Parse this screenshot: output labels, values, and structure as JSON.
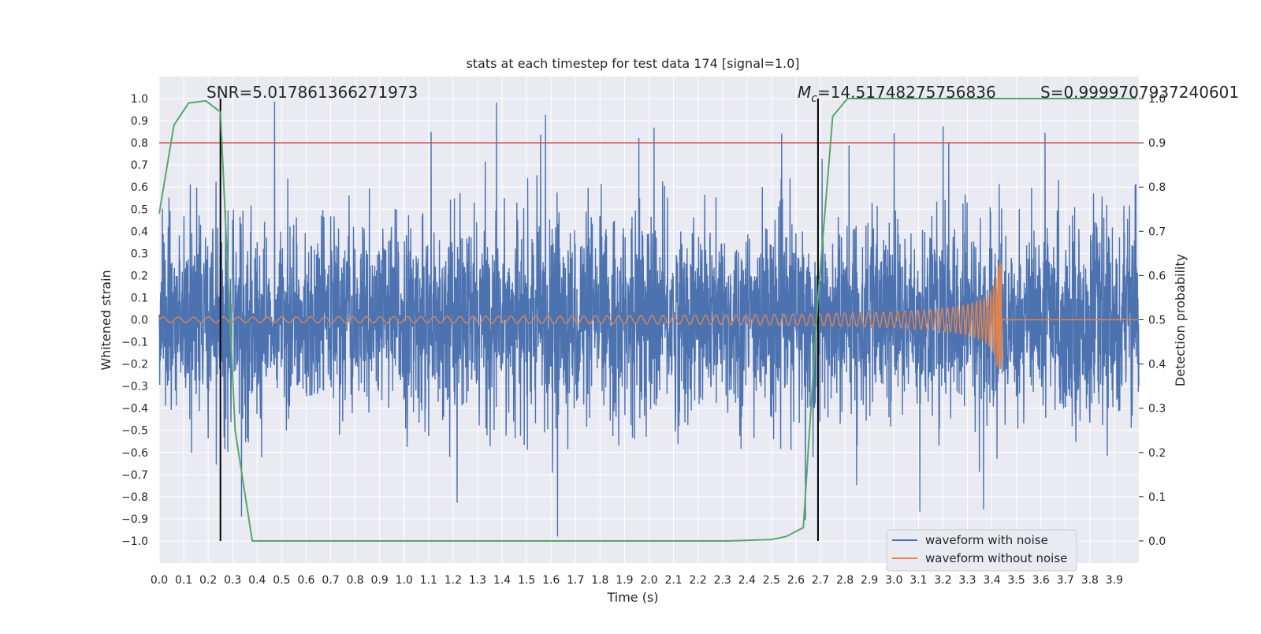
{
  "chart_data": {
    "type": "line",
    "title": "stats at each timestep for test data 174 [signal=1.0]",
    "xlabel": "Time (s)",
    "ylabel": "Whitened strain",
    "y2label": "Detection probability",
    "xlim": [
      0.0,
      4.0
    ],
    "ylim": [
      -1.1,
      1.1
    ],
    "y2lim": [
      -0.05,
      1.05
    ],
    "x_ticks": [
      "0.0",
      "0.1",
      "0.2",
      "0.3",
      "0.4",
      "0.5",
      "0.6",
      "0.7",
      "0.8",
      "0.9",
      "1.0",
      "1.1",
      "1.2",
      "1.3",
      "1.4",
      "1.5",
      "1.6",
      "1.7",
      "1.8",
      "1.9",
      "2.0",
      "2.1",
      "2.2",
      "2.3",
      "2.4",
      "2.5",
      "2.6",
      "2.7",
      "2.8",
      "2.9",
      "3.0",
      "3.1",
      "3.2",
      "3.3",
      "3.4",
      "3.5",
      "3.6",
      "3.7",
      "3.8",
      "3.9"
    ],
    "y_ticks": [
      "1.0",
      "0.9",
      "0.8",
      "0.7",
      "0.6",
      "0.5",
      "0.4",
      "0.3",
      "0.2",
      "0.1",
      "0.0",
      "−0.1",
      "−0.2",
      "−0.3",
      "−0.4",
      "−0.5",
      "−0.6",
      "−0.7",
      "−0.8",
      "−0.9",
      "−1.0"
    ],
    "y2_ticks": [
      "1.0",
      "0.9",
      "0.8",
      "0.7",
      "0.6",
      "0.5",
      "0.4",
      "0.3",
      "0.2",
      "0.1",
      "0.0"
    ],
    "grid": true,
    "legend_position": "bottom-right",
    "annotations": {
      "snr": "SNR=5.017861366271973",
      "mc_symbol": "M",
      "mc_sub": "c",
      "mc_value": "=14.51748275756836",
      "s": "S=0.9999707937240601"
    },
    "threshold": {
      "y": 0.8,
      "color": "#c44e52"
    },
    "vlines": [
      0.25,
      2.69
    ],
    "series": [
      {
        "name": "waveform with noise",
        "color": "#4c72b0",
        "description_sample": "dense gaussian-like noise, mostly within ±0.5, spikes up to ±1.0",
        "amplitude_range": [
          -0.98,
          0.99
        ]
      },
      {
        "name": "waveform without noise",
        "color": "#dd8452",
        "chirp": {
          "start": 0.0,
          "merger": 3.44,
          "peak_amplitude": 0.26,
          "trough_amplitude": -0.22
        }
      },
      {
        "name": "detection probability",
        "color": "#55a868",
        "axis": "right",
        "x": [
          0.0,
          0.06,
          0.12,
          0.19,
          0.25,
          0.31,
          0.38,
          0.44,
          0.5,
          1.0,
          1.5,
          2.0,
          2.32,
          2.5,
          2.56,
          2.63,
          2.69,
          2.75,
          2.81,
          3.0,
          3.5,
          3.99
        ],
        "y": [
          0.74,
          0.94,
          0.99,
          0.995,
          0.97,
          0.25,
          0.0,
          0.0,
          0.0,
          0.0,
          0.0,
          0.0,
          0.0,
          0.003,
          0.01,
          0.03,
          0.55,
          0.96,
          1.0,
          1.0,
          1.0,
          1.0
        ]
      }
    ]
  },
  "colors": {
    "axes_background": "#eaeaf2",
    "grid": "#ffffff",
    "text": "#262626",
    "vline": "#000000"
  }
}
